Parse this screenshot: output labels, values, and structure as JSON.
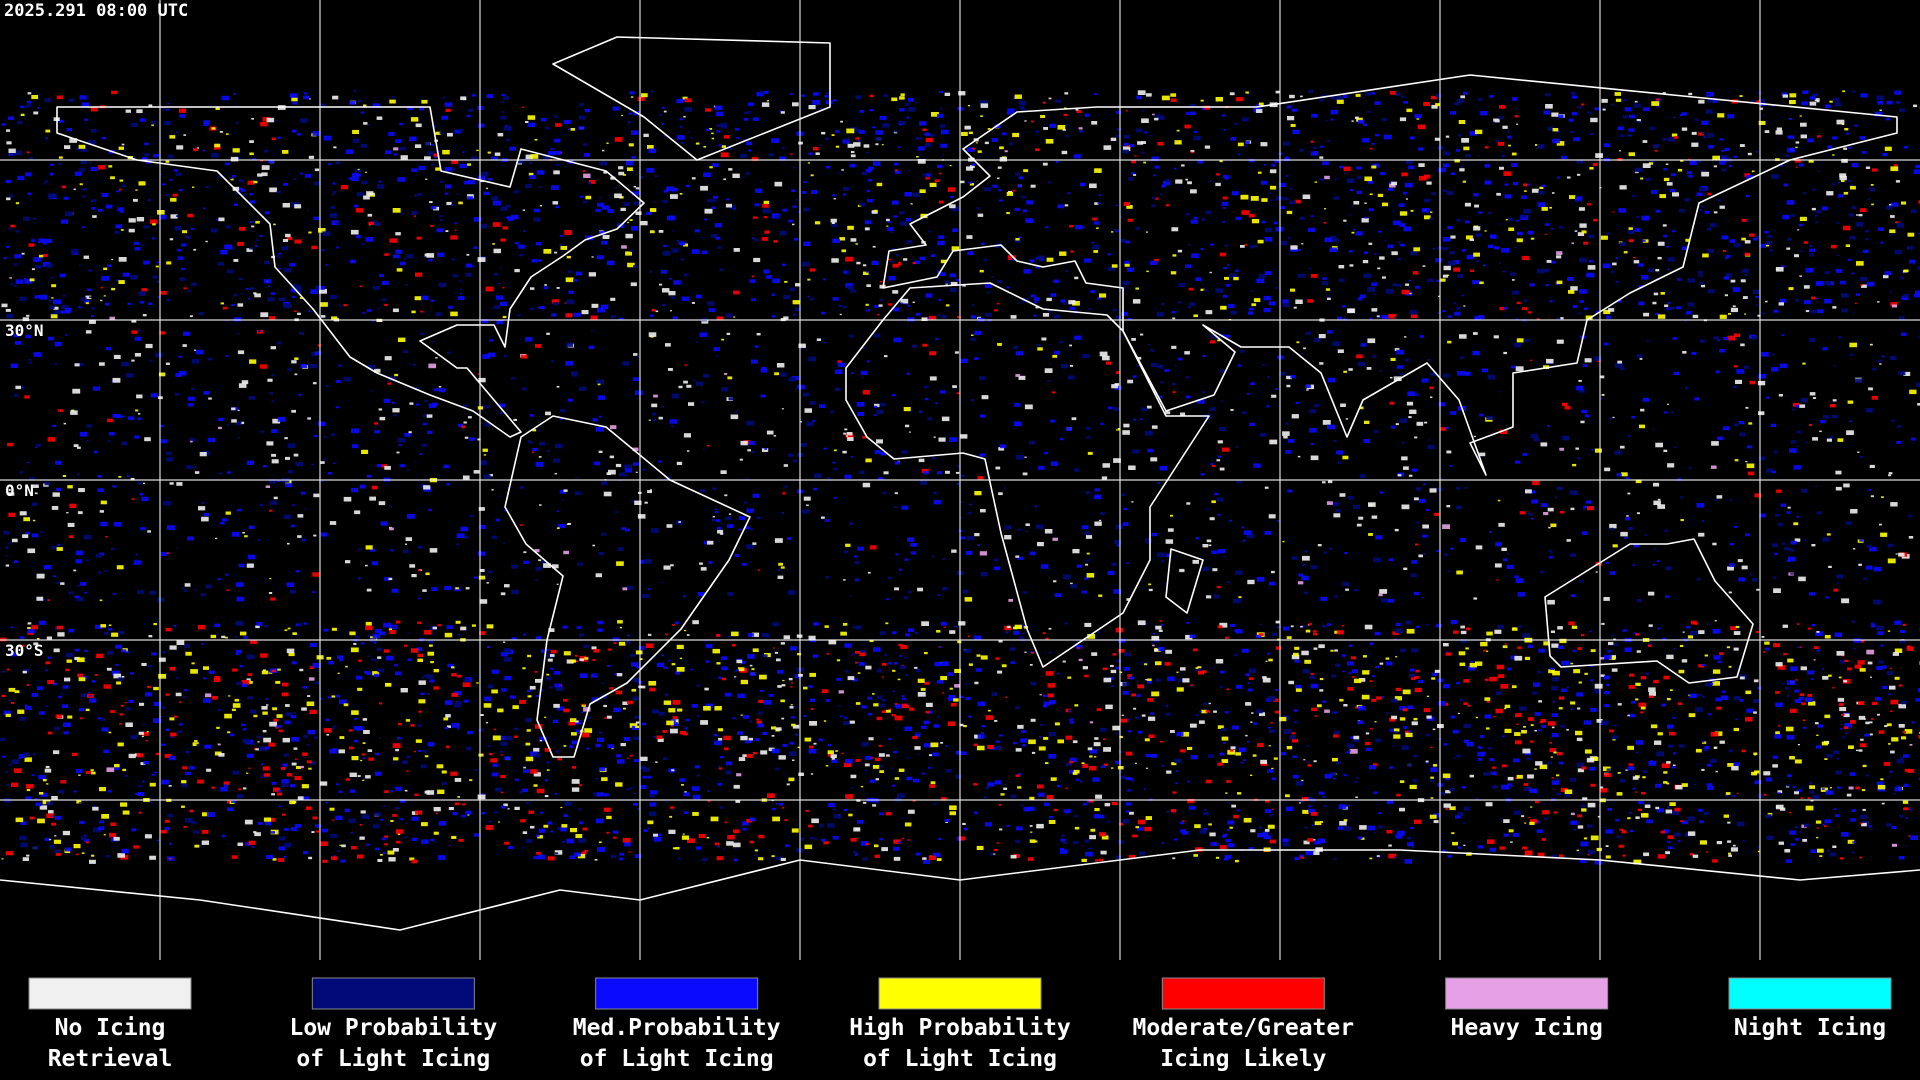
{
  "header": {
    "timestamp": "2025.291 08:00 UTC"
  },
  "map": {
    "latitude_labels": [
      "30°N",
      "0°N",
      "30°S"
    ]
  },
  "legend": {
    "items": [
      {
        "lines": [
          "No Icing",
          "Retrieval"
        ],
        "color": "#f0f0f0"
      },
      {
        "lines": [
          "Low Probability",
          "of Light Icing"
        ],
        "color": "#000a78"
      },
      {
        "lines": [
          "Med.Probability",
          "of Light Icing"
        ],
        "color": "#0a0aff"
      },
      {
        "lines": [
          "High Probability",
          "of Light Icing"
        ],
        "color": "#ffff00"
      },
      {
        "lines": [
          "Moderate/Greater",
          "Icing Likely"
        ],
        "color": "#ff0000"
      },
      {
        "lines": [
          "Heavy Icing"
        ],
        "color": "#e6a0e6"
      },
      {
        "lines": [
          "Night Icing"
        ],
        "color": "#00ffff"
      }
    ]
  }
}
